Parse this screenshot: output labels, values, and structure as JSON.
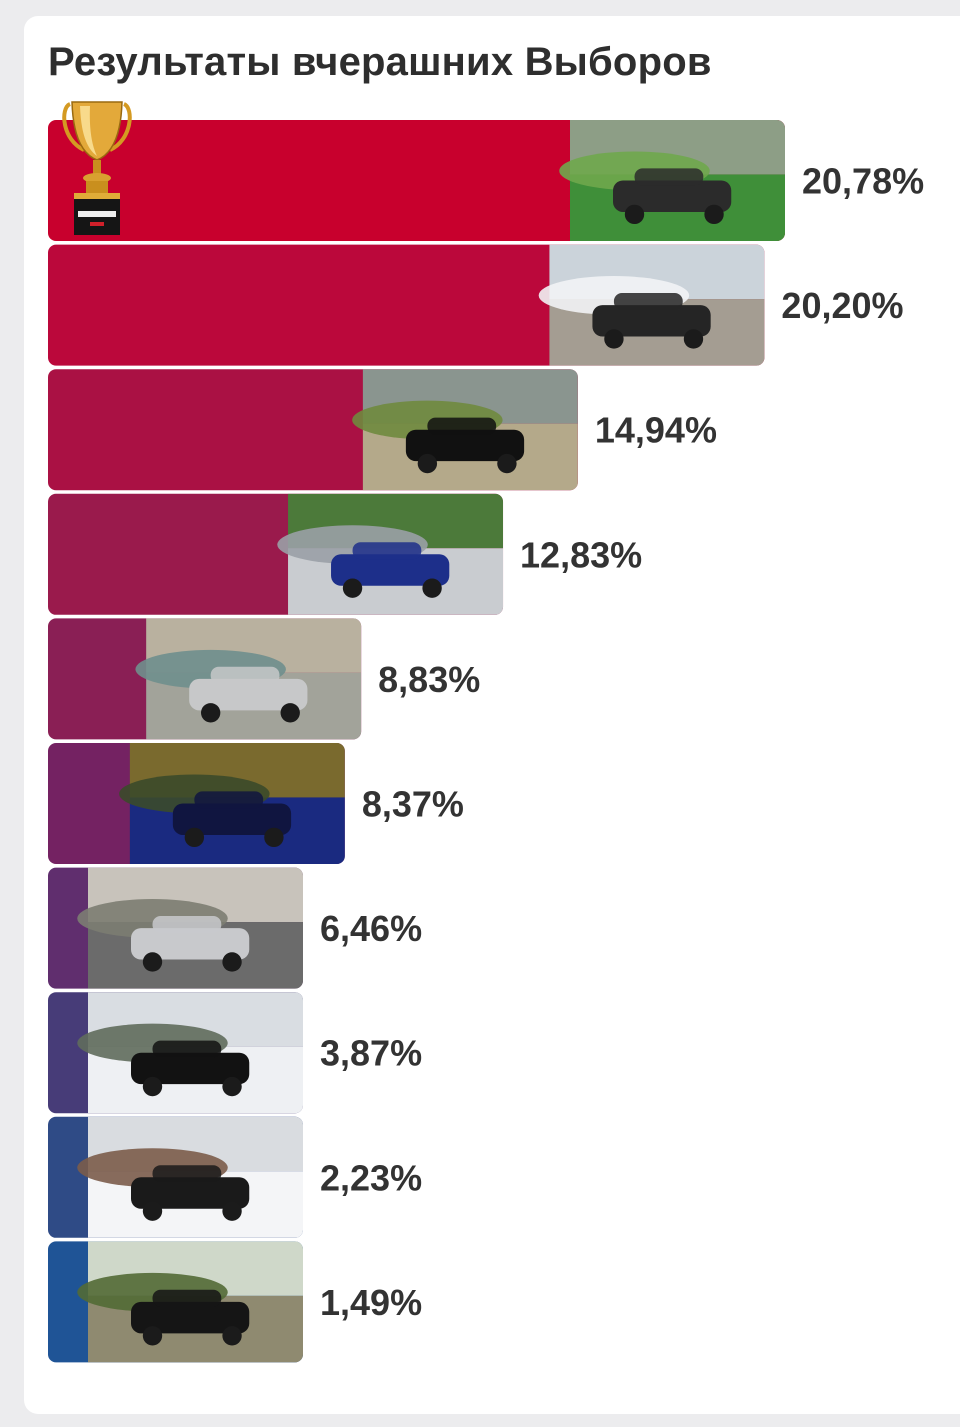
{
  "title": "Результаты вчерашних Выборов",
  "trophy": {
    "icon": "trophy-icon",
    "plate_text": "МАШИНА ДНЯ"
  },
  "chart_data": {
    "type": "bar",
    "orientation": "horizontal",
    "title": "Результаты вчерашних Выборов",
    "xlabel": "",
    "ylabel": "",
    "unit": "%",
    "xlim": [
      0,
      20.78
    ],
    "grid": false,
    "legend": "none",
    "categories": [
      "",
      "",
      "",
      "",
      "",
      "",
      "",
      "",
      "",
      ""
    ],
    "values": [
      20.78,
      20.2,
      14.94,
      12.83,
      8.83,
      8.37,
      6.46,
      3.87,
      2.23,
      1.49
    ],
    "labels": [
      "20,78%",
      "20,20%",
      "14,94%",
      "12,83%",
      "8,83%",
      "8,37%",
      "6,46%",
      "3,87%",
      "2,23%",
      "1,49%"
    ],
    "colors": [
      "#c8002d",
      "#bb083b",
      "#aa1144",
      "#9a1a4c",
      "#8a1f55",
      "#742262",
      "#602e6e",
      "#473c78",
      "#2f4b86",
      "#1f5496"
    ],
    "photo_scenes": [
      {
        "scene": "car-photo-green-suv",
        "colors": [
          "#8d9e86",
          "#6fa74c",
          "#3f8f39",
          "#2b2b2b"
        ]
      },
      {
        "scene": "car-photo-van-snow",
        "colors": [
          "#cbd3da",
          "#f2f3f5",
          "#a49d92",
          "#252525"
        ]
      },
      {
        "scene": "car-photo-hill-girl",
        "colors": [
          "#8a958f",
          "#6f8a3e",
          "#b4a98a",
          "#111111"
        ]
      },
      {
        "scene": "car-photo-blue-sedan",
        "colors": [
          "#4c7a3a",
          "#9aa0a6",
          "#c9ccd0",
          "#1d2f8a"
        ]
      },
      {
        "scene": "car-photo-silver-sedan-girl",
        "colors": [
          "#b9b19f",
          "#6f8f8d",
          "#a2a39a",
          "#c7c8c9"
        ]
      },
      {
        "scene": "car-photo-audi-front",
        "colors": [
          "#7a6a2e",
          "#3b4a2a",
          "#1a2a80",
          "#101540"
        ]
      },
      {
        "scene": "car-photo-sedan-road",
        "colors": [
          "#c8c3bb",
          "#7c7d72",
          "#6b6b6b",
          "#c8c9cc"
        ]
      },
      {
        "scene": "car-photo-black-sedan-snow",
        "colors": [
          "#d9dde2",
          "#5f6b5c",
          "#eef0f3",
          "#121212"
        ]
      },
      {
        "scene": "car-photo-suv-village-snow",
        "colors": [
          "#d9dce0",
          "#7b5c4a",
          "#f4f5f7",
          "#1a1a1a"
        ]
      },
      {
        "scene": "car-photo-sedan-sunset",
        "colors": [
          "#cfd8c9",
          "#526a35",
          "#8f8a70",
          "#151515"
        ]
      }
    ]
  }
}
